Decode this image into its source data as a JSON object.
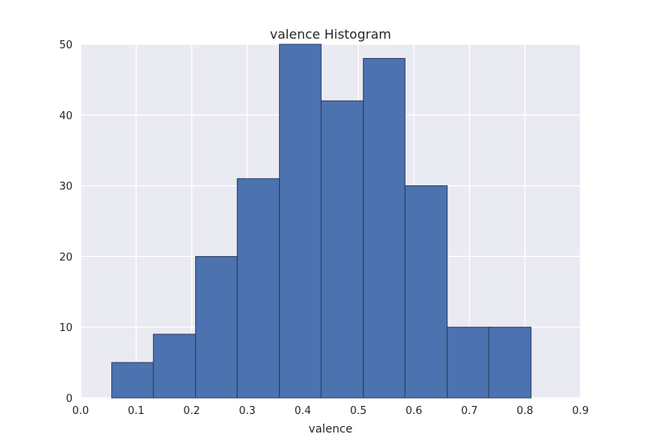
{
  "chart_data": {
    "type": "bar",
    "title": "valence Histogram",
    "xlabel": "valence",
    "ylabel": "",
    "xlim": [
      0.0,
      0.9
    ],
    "ylim": [
      0,
      50
    ],
    "xticks": [
      "0.0",
      "0.1",
      "0.2",
      "0.3",
      "0.4",
      "0.5",
      "0.6",
      "0.7",
      "0.8",
      "0.9"
    ],
    "yticks": [
      "0",
      "10",
      "20",
      "30",
      "40",
      "50"
    ],
    "bin_edges": [
      0.056,
      0.131,
      0.207,
      0.282,
      0.358,
      0.433,
      0.509,
      0.584,
      0.66,
      0.735,
      0.811
    ],
    "values": [
      5,
      9,
      20,
      31,
      50,
      42,
      48,
      30,
      10,
      10
    ],
    "grid": true,
    "colors": {
      "bar": "#4c72b0",
      "bar_edge": "#2a3f5f",
      "plot_bg": "#eaeaf2",
      "grid": "#ffffff"
    }
  }
}
